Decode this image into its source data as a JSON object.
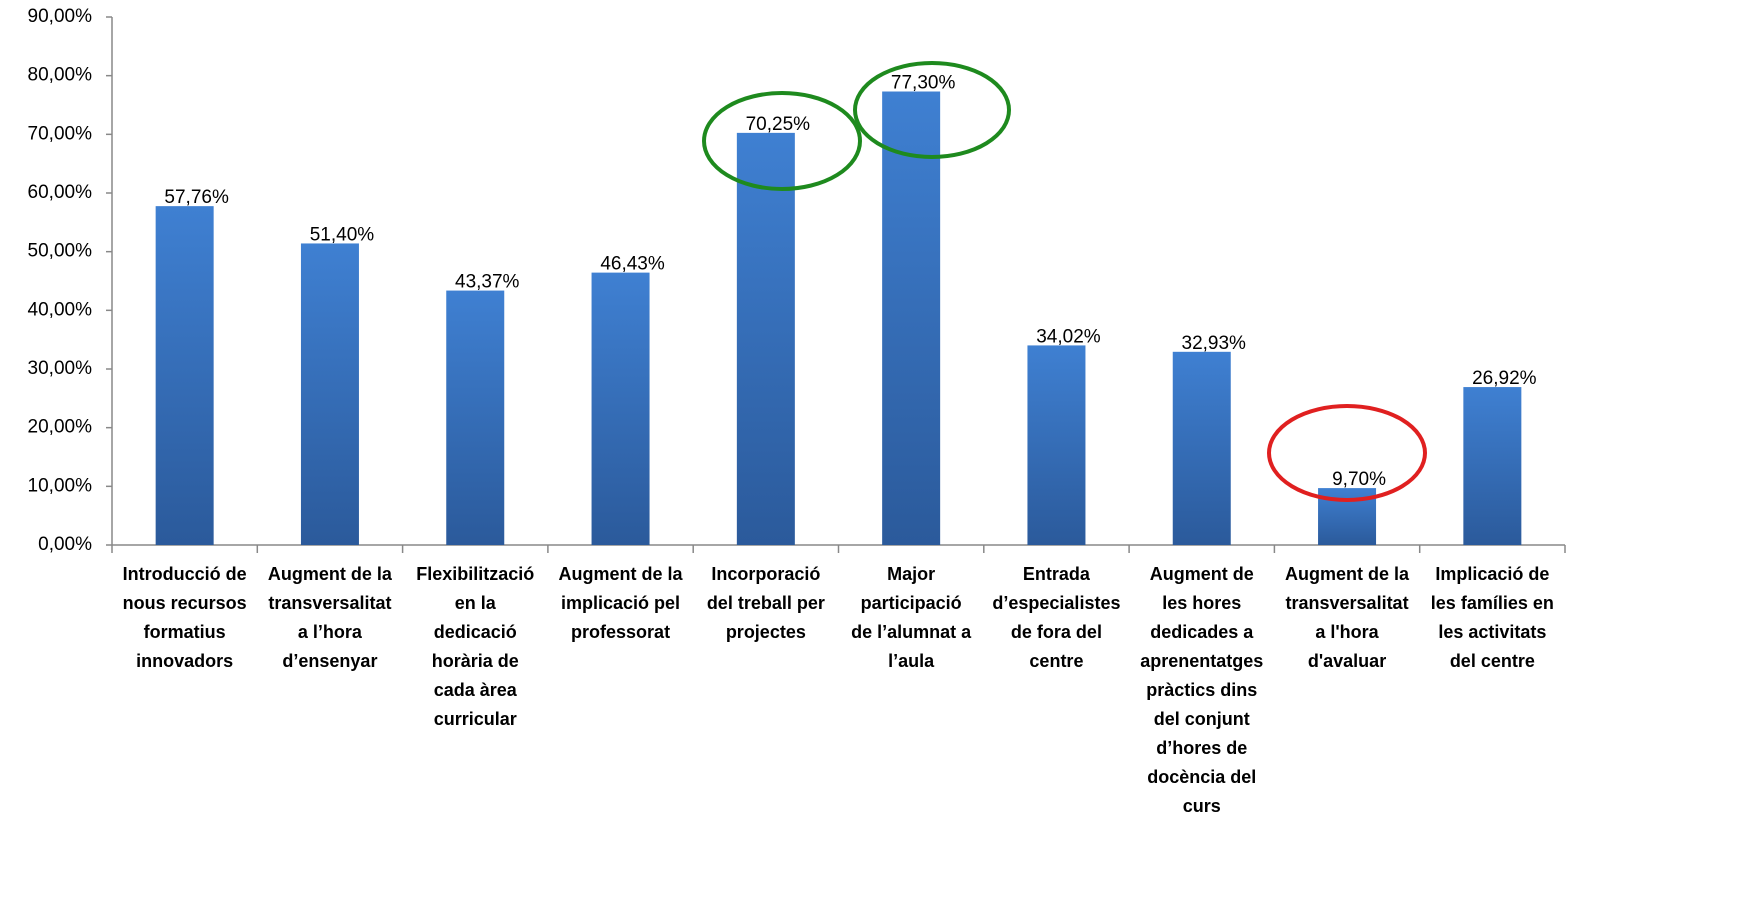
{
  "chart_data": {
    "type": "bar",
    "categories": [
      "Introducció de\nnous recursos\nformatius\ninnovadors",
      "Augment de la\ntransversalitat\na l’hora\nd’ensenyar",
      "Flexibilització\nen la\ndedicació\nhorària de\ncada àrea\ncurricular",
      "Augment de la\nimplicació pel\nprofessorat",
      "Incorporació\ndel treball per\nprojectes",
      "Major\nparticipació\nde l’alumnat a\nl’aula",
      "Entrada\nd’especialistes\nde fora del\ncentre",
      "Augment de\nles hores\ndedicades a\naprenentatges\npràctics dins\ndel conjunt\nd’hores de\ndocència del\ncurs",
      "Augment de la\ntransversalitat\na l'hora\nd'avaluar",
      "Implicació de\nles famílies en\nles activitats\ndel centre"
    ],
    "values": [
      57.76,
      51.4,
      43.37,
      46.43,
      70.25,
      77.3,
      34.02,
      32.93,
      9.7,
      26.92
    ],
    "value_labels": [
      "57,76%",
      "51,40%",
      "43,37%",
      "46,43%",
      "70,25%",
      "77,30%",
      "34,02%",
      "32,93%",
      "9,70%",
      "26,92%"
    ],
    "color": "#3f80d2",
    "ylim": [
      0,
      90
    ],
    "yticks": [
      {
        "value": 0,
        "label": "0,00%"
      },
      {
        "value": 10,
        "label": "10,00%"
      },
      {
        "value": 20,
        "label": "20,00%"
      },
      {
        "value": 30,
        "label": "30,00%"
      },
      {
        "value": 40,
        "label": "40,00%"
      },
      {
        "value": 50,
        "label": "50,00%"
      },
      {
        "value": 60,
        "label": "60,00%"
      },
      {
        "value": 70,
        "label": "70,00%"
      },
      {
        "value": 80,
        "label": "80,00%"
      },
      {
        "value": 90,
        "label": "90,00%"
      }
    ],
    "grid": false
  }
}
